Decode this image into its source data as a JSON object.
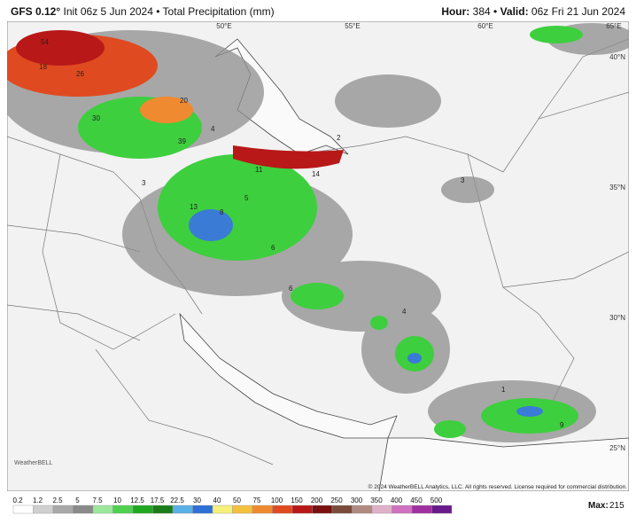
{
  "header": {
    "model": "GFS 0.12°",
    "init": "Init 06z 5 Jun 2024 • Total Precipitation (mm)",
    "hour_label": "Hour:",
    "hour": "384 •",
    "valid_label": "Valid:",
    "valid": "06z Fri 21 Jun 2024"
  },
  "map": {
    "lon_labels": [
      "50°E",
      "55°E",
      "60°E",
      "65°E"
    ],
    "lat_labels": [
      "40°N",
      "35°N",
      "30°N",
      "25°N"
    ],
    "numbers": [
      "54",
      "18",
      "26",
      "30",
      "20",
      "39",
      "4",
      "2",
      "14",
      "11",
      "13",
      "3",
      "5",
      "8",
      "6",
      "6",
      "4",
      "1",
      "3",
      "9"
    ],
    "copyright": "© 2024 WeatherBELL Analytics, LLC. All rights reserved. License required for commercial distribution.",
    "logo": "WeatherBELL"
  },
  "legend": {
    "labels": [
      "0.2",
      "1.2",
      "2.5",
      "5",
      "7.5",
      "10",
      "12.5",
      "17.5",
      "22.5",
      "30",
      "40",
      "50",
      "75",
      "100",
      "150",
      "200",
      "250",
      "300",
      "350",
      "400",
      "450",
      "500"
    ],
    "colors": [
      "#ffffff",
      "#cfcfcf",
      "#a8a8a8",
      "#8a8a8a",
      "#9be89b",
      "#4fd14f",
      "#20a820",
      "#1a7d1a",
      "#5ab0e8",
      "#2f6fd6",
      "#f5f07a",
      "#f5c040",
      "#f08a30",
      "#e04a20",
      "#b81818",
      "#7a1010",
      "#7a4a3a",
      "#b08a80",
      "#e0b0c8",
      "#d070c0",
      "#a030a0",
      "#6a1a8a"
    ],
    "max_label": "Max:",
    "max": "215"
  }
}
